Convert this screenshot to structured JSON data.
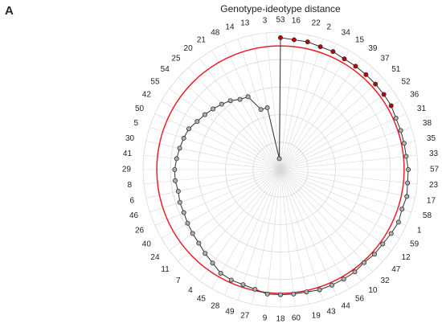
{
  "panel_label": "A",
  "chart_data": {
    "type": "radar",
    "title": "Genotype-ideotype distance",
    "categories": [
      "53",
      "16",
      "22",
      "2",
      "34",
      "15",
      "39",
      "37",
      "51",
      "52",
      "36",
      "31",
      "38",
      "35",
      "33",
      "57",
      "23",
      "17",
      "58",
      "1",
      "59",
      "12",
      "47",
      "32",
      "10",
      "56",
      "44",
      "43",
      "19",
      "60",
      "18",
      "9",
      "27",
      "49",
      "28",
      "45",
      "4",
      "7",
      "11",
      "24",
      "40",
      "26",
      "46",
      "6",
      "8",
      "29",
      "41",
      "30",
      "5",
      "50",
      "42",
      "55",
      "54",
      "25",
      "20",
      "21",
      "48",
      "14",
      "13",
      "3"
    ],
    "series": [
      {
        "color": "#333333",
        "values": [
          96,
          95,
          95,
          94,
          94,
          93,
          93,
          93,
          93,
          93,
          93,
          92,
          92,
          92,
          92,
          93,
          93,
          94,
          93,
          94,
          93,
          92,
          92,
          91,
          92,
          92,
          92,
          92,
          91,
          91,
          91,
          91,
          89,
          88,
          88,
          87,
          84,
          82,
          80,
          79,
          78,
          77,
          77,
          76,
          77,
          77,
          76,
          75,
          74,
          73,
          70,
          68,
          66,
          64,
          62,
          59,
          58,
          46,
          46,
          8
        ],
        "point_colors": [
          "#c00000",
          "#c00000",
          "#c00000",
          "#c00000",
          "#c00000",
          "#c00000",
          "#c00000",
          "#c00000",
          "#c00000",
          "#c00000",
          "#c00000",
          "#b0b0b0",
          "#b0b0b0",
          "#b0b0b0",
          "#b0b0b0",
          "#b0b0b0",
          "#b0b0b0",
          "#b0b0b0",
          "#b0b0b0",
          "#b0b0b0",
          "#b0b0b0",
          "#b0b0b0",
          "#b0b0b0",
          "#b0b0b0",
          "#b0b0b0",
          "#b0b0b0",
          "#b0b0b0",
          "#b0b0b0",
          "#b0b0b0",
          "#b0b0b0",
          "#b0b0b0",
          "#b0b0b0",
          "#b0b0b0",
          "#b0b0b0",
          "#b0b0b0",
          "#b0b0b0",
          "#b0b0b0",
          "#b0b0b0",
          "#b0b0b0",
          "#b0b0b0",
          "#b0b0b0",
          "#b0b0b0",
          "#b0b0b0",
          "#b0b0b0",
          "#b0b0b0",
          "#b0b0b0",
          "#b0b0b0",
          "#b0b0b0",
          "#b0b0b0",
          "#b0b0b0",
          "#b0b0b0",
          "#b0b0b0",
          "#b0b0b0",
          "#b0b0b0",
          "#b0b0b0",
          "#b0b0b0",
          "#b0b0b0",
          "#b0b0b0",
          "#b0b0b0",
          "#b0b0b0"
        ]
      }
    ],
    "reference_circle": {
      "value": 90,
      "color": "#e8202a"
    },
    "ylim": [
      0,
      100
    ],
    "yticks": [
      20,
      40,
      60,
      80,
      100
    ],
    "grid": true
  }
}
